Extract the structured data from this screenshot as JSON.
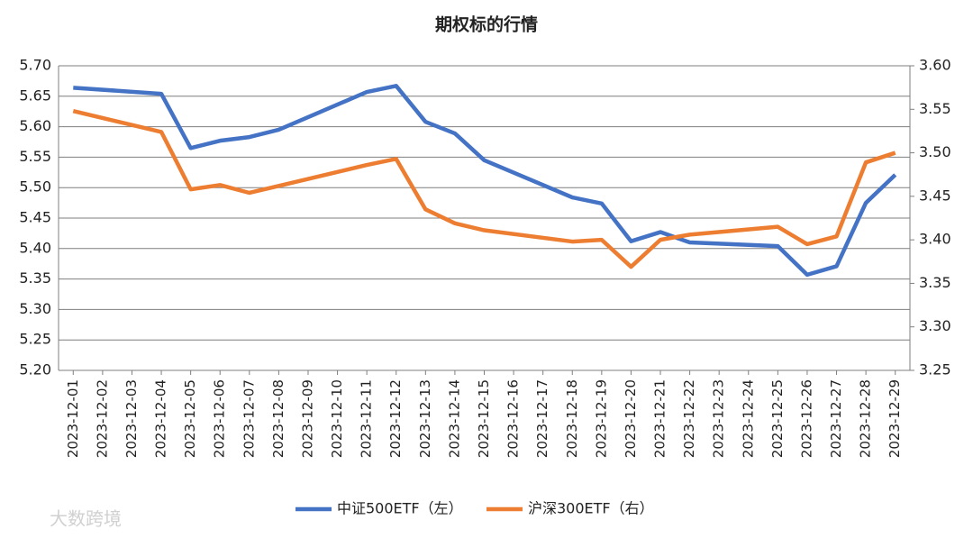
{
  "chart_data": {
    "type": "line",
    "title": "期权标的行情",
    "watermark": "大数跨境",
    "x": [
      "2023-12-01",
      "2023-12-04",
      "2023-12-05",
      "2023-12-06",
      "2023-12-07",
      "2023-12-08",
      "2023-12-11",
      "2023-12-12",
      "2023-12-13",
      "2023-12-14",
      "2023-12-15",
      "2023-12-18",
      "2023-12-19",
      "2023-12-20",
      "2023-12-21",
      "2023-12-22",
      "2023-12-25",
      "2023-12-26",
      "2023-12-27",
      "2023-12-28",
      "2023-12-29"
    ],
    "xlim": [
      "2023-12-01",
      "2023-12-29"
    ],
    "xticks": [
      "2023-12-01",
      "2023-12-02",
      "2023-12-03",
      "2023-12-04",
      "2023-12-05",
      "2023-12-06",
      "2023-12-07",
      "2023-12-08",
      "2023-12-09",
      "2023-12-10",
      "2023-12-11",
      "2023-12-12",
      "2023-12-13",
      "2023-12-14",
      "2023-12-15",
      "2023-12-16",
      "2023-12-17",
      "2023-12-18",
      "2023-12-19",
      "2023-12-20",
      "2023-12-21",
      "2023-12-22",
      "2023-12-23",
      "2023-12-24",
      "2023-12-25",
      "2023-12-26",
      "2023-12-27",
      "2023-12-28",
      "2023-12-29"
    ],
    "series": [
      {
        "name": "中证500ETF（左）",
        "color": "#4472c4",
        "values": [
          5.664,
          5.654,
          5.565,
          5.577,
          5.583,
          5.595,
          5.657,
          5.667,
          5.608,
          5.589,
          5.545,
          5.484,
          5.474,
          5.412,
          5.427,
          5.41,
          5.404,
          5.357,
          5.371,
          5.475,
          5.521
        ]
      },
      {
        "name": "沪深300ETF（右）",
        "color": "#ed7d31",
        "axis": "y2",
        "values": [
          3.548,
          3.524,
          3.458,
          3.463,
          3.454,
          3.462,
          3.486,
          3.493,
          3.435,
          3.419,
          3.411,
          3.398,
          3.4,
          3.369,
          3.4,
          3.406,
          3.415,
          3.395,
          3.404,
          3.489,
          3.5
        ]
      }
    ],
    "ylim": [
      5.2,
      5.7
    ],
    "yticks": [
      {
        "value": 5.2,
        "label": "5.20"
      },
      5.25,
      {
        "value": 5.3,
        "label": "5.30"
      },
      5.35,
      {
        "value": 5.4,
        "label": "5.40"
      },
      5.45,
      {
        "value": 5.5,
        "label": "5.50"
      },
      5.55,
      {
        "value": 5.6,
        "label": "5.60"
      },
      5.65,
      {
        "value": 5.7,
        "label": "5.70"
      }
    ],
    "y2lim": [
      3.25,
      3.6
    ],
    "y2ticks": [
      3.25,
      {
        "value": 3.3,
        "label": "3.30"
      },
      3.35,
      {
        "value": 3.4,
        "label": "3.40"
      },
      3.45,
      {
        "value": 3.5,
        "label": "3.50"
      },
      3.55,
      {
        "value": 3.6,
        "label": "3.60"
      }
    ],
    "grid": true,
    "legend": "bottom"
  }
}
